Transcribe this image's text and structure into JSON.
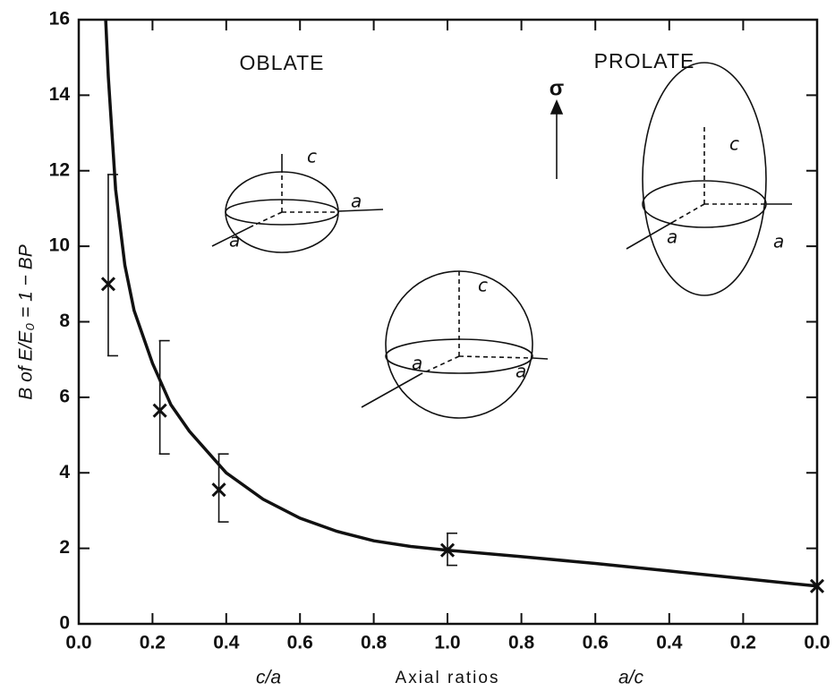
{
  "chart_data": {
    "type": "line",
    "ylabel": "B of E/E₀ = 1 − BP",
    "xlabel": "c/a",
    "x2label": "a/c",
    "center_label": "Axial ratios",
    "annotations": {
      "oblate": "OBLATE",
      "prolate": "PROLATE",
      "sigma": "σ"
    },
    "diagram_labels": [
      [
        "c",
        "a",
        "a"
      ],
      [
        "c",
        "a",
        "a"
      ],
      [
        "c",
        "a",
        "a"
      ]
    ],
    "ylim": [
      0,
      16
    ],
    "yticks": [
      0,
      2,
      4,
      6,
      8,
      10,
      12,
      14,
      16
    ],
    "xlim": [
      0,
      1
    ],
    "xticks": [
      {
        "value": 0,
        "label": "0.0"
      },
      0.2,
      0.4,
      0.6,
      0.8,
      {
        "value": 1,
        "label": "1.0"
      }
    ],
    "x2lim": [
      1,
      0
    ],
    "x2ticks": [
      0.8,
      0.6,
      0.4,
      0.2,
      {
        "value": 0,
        "label": "0.0"
      }
    ],
    "color": "#111111",
    "curves": [
      {
        "axis": "x",
        "x": [
          0.073,
          0.08,
          0.1,
          0.125,
          0.15,
          0.2,
          0.25,
          0.3,
          0.4,
          0.5,
          0.6,
          0.7,
          0.8,
          0.9,
          1.0
        ],
        "values": [
          16,
          14.5,
          11.5,
          9.5,
          8.3,
          6.9,
          5.8,
          5.1,
          4.0,
          3.3,
          2.8,
          2.45,
          2.2,
          2.05,
          1.95
        ]
      },
      {
        "axis": "x2",
        "x": [
          1.0,
          0.8,
          0.6,
          0.4,
          0.2,
          0.0
        ],
        "values": [
          1.95,
          1.78,
          1.6,
          1.4,
          1.2,
          1.0
        ]
      }
    ],
    "points": [
      {
        "axis": "x",
        "x": [
          0.08,
          0.22,
          0.38,
          1.0
        ],
        "values": [
          9.0,
          5.65,
          3.55,
          1.95
        ],
        "err_low": [
          7.1,
          4.5,
          2.7,
          1.55
        ],
        "err_high": [
          11.9,
          7.5,
          4.5,
          2.4
        ]
      },
      {
        "axis": "x2",
        "x": [
          0.0
        ],
        "values": [
          1.0
        ]
      }
    ]
  }
}
